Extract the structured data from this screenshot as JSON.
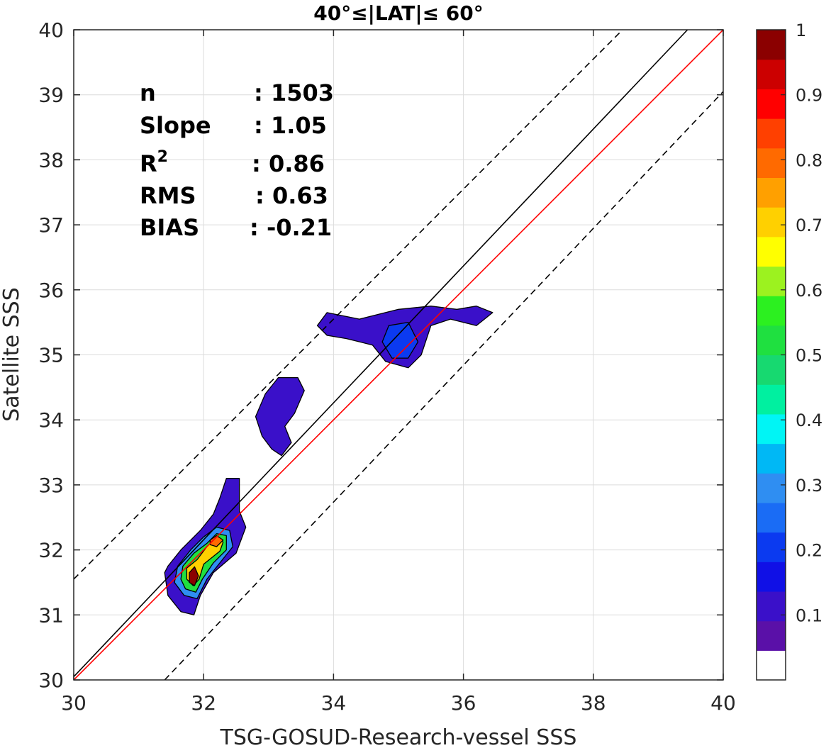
{
  "chart_data": {
    "type": "contour",
    "title": "40°≤|LAT|≤ 60°",
    "xlabel": "TSG-GOSUD-Research-vessel SSS",
    "ylabel": "Satellite SSS",
    "xlim": [
      30,
      40
    ],
    "ylim": [
      30,
      40
    ],
    "xticks": [
      "30",
      "32",
      "34",
      "36",
      "38",
      "40"
    ],
    "yticks": [
      "30",
      "31",
      "32",
      "33",
      "34",
      "35",
      "36",
      "37",
      "38",
      "39",
      "40"
    ],
    "grid": true,
    "stats": [
      {
        "label": "n",
        "value": ": 1503"
      },
      {
        "label": "Slope",
        "value": ": 1.05"
      },
      {
        "label": "R",
        "sup": "2",
        "value": ": 0.86"
      },
      {
        "label": "RMS",
        "value": ": 0.63"
      },
      {
        "label": "BIAS",
        "value": ": -0.21"
      }
    ],
    "lines": [
      {
        "name": "one-to-one",
        "color": "#ff0000",
        "style": "solid",
        "from": [
          30,
          30
        ],
        "to": [
          40,
          40
        ]
      },
      {
        "name": "regression",
        "color": "#000000",
        "style": "solid",
        "from": [
          30,
          30.05
        ],
        "to": [
          39.45,
          40
        ]
      },
      {
        "name": "upper-bound",
        "color": "#000000",
        "style": "dashed",
        "from": [
          30,
          31.55
        ],
        "to": [
          38.45,
          40
        ]
      },
      {
        "name": "lower-bound",
        "color": "#000000",
        "style": "dashed",
        "from": [
          31.4,
          30
        ],
        "to": [
          40,
          39.05
        ]
      }
    ],
    "contours": [
      {
        "level": 0.1,
        "color": "#3a10c9",
        "points": [
          [
            31.45,
            31.75
          ],
          [
            31.65,
            32.0
          ],
          [
            31.95,
            32.3
          ],
          [
            32.15,
            32.55
          ],
          [
            32.25,
            32.8
          ],
          [
            32.35,
            33.1
          ],
          [
            32.55,
            33.1
          ],
          [
            32.55,
            32.6
          ],
          [
            32.65,
            32.35
          ],
          [
            32.5,
            31.95
          ],
          [
            32.15,
            31.65
          ],
          [
            31.95,
            31.3
          ],
          [
            31.85,
            31.0
          ],
          [
            31.65,
            31.05
          ],
          [
            31.45,
            31.3
          ],
          [
            31.4,
            31.65
          ]
        ]
      },
      {
        "level": 0.1,
        "color": "#3a10c9",
        "points": [
          [
            32.8,
            34.05
          ],
          [
            32.95,
            34.4
          ],
          [
            33.15,
            34.65
          ],
          [
            33.45,
            34.65
          ],
          [
            33.55,
            34.45
          ],
          [
            33.4,
            34.1
          ],
          [
            33.25,
            33.9
          ],
          [
            33.35,
            33.65
          ],
          [
            33.2,
            33.45
          ],
          [
            33.05,
            33.55
          ],
          [
            32.9,
            33.75
          ]
        ]
      },
      {
        "level": 0.1,
        "color": "#3a10c9",
        "points": [
          [
            33.75,
            35.45
          ],
          [
            33.9,
            35.65
          ],
          [
            34.4,
            35.55
          ],
          [
            35.0,
            35.7
          ],
          [
            35.5,
            35.75
          ],
          [
            35.9,
            35.7
          ],
          [
            36.2,
            35.75
          ],
          [
            36.45,
            35.65
          ],
          [
            36.2,
            35.45
          ],
          [
            35.8,
            35.55
          ],
          [
            35.5,
            35.45
          ],
          [
            35.35,
            35.0
          ],
          [
            35.15,
            34.8
          ],
          [
            34.8,
            34.9
          ],
          [
            34.6,
            35.15
          ],
          [
            34.2,
            35.25
          ],
          [
            33.9,
            35.3
          ]
        ]
      },
      {
        "level": 0.2,
        "color": "#0b3af0",
        "points": [
          [
            34.75,
            35.2
          ],
          [
            34.85,
            35.45
          ],
          [
            35.15,
            35.5
          ],
          [
            35.3,
            35.2
          ],
          [
            35.15,
            34.95
          ],
          [
            34.9,
            34.95
          ]
        ]
      },
      {
        "level": 0.3,
        "color": "#2f8ef2",
        "points": [
          [
            31.6,
            31.75
          ],
          [
            31.8,
            32.0
          ],
          [
            32.0,
            32.2
          ],
          [
            32.2,
            32.35
          ],
          [
            32.4,
            32.3
          ],
          [
            32.45,
            32.05
          ],
          [
            32.25,
            31.8
          ],
          [
            32.05,
            31.55
          ],
          [
            31.9,
            31.25
          ],
          [
            31.7,
            31.3
          ],
          [
            31.55,
            31.5
          ]
        ]
      },
      {
        "level": 0.5,
        "color": "#1fe040",
        "points": [
          [
            31.68,
            31.75
          ],
          [
            31.85,
            31.95
          ],
          [
            32.05,
            32.1
          ],
          [
            32.2,
            32.25
          ],
          [
            32.35,
            32.22
          ],
          [
            32.35,
            32.0
          ],
          [
            32.15,
            31.8
          ],
          [
            31.98,
            31.55
          ],
          [
            31.88,
            31.35
          ],
          [
            31.72,
            31.4
          ],
          [
            31.65,
            31.55
          ]
        ]
      },
      {
        "level": 0.7,
        "color": "#ffd000",
        "points": [
          [
            31.74,
            31.72
          ],
          [
            31.9,
            31.85
          ],
          [
            32.05,
            32.05
          ],
          [
            32.2,
            32.2
          ],
          [
            32.3,
            32.12
          ],
          [
            32.25,
            31.98
          ],
          [
            32.0,
            31.78
          ],
          [
            31.93,
            31.55
          ],
          [
            31.84,
            31.45
          ],
          [
            31.74,
            31.55
          ]
        ]
      },
      {
        "level": 0.8,
        "color": "#ff6a00",
        "points": [
          [
            32.1,
            32.15
          ],
          [
            32.2,
            32.22
          ],
          [
            32.3,
            32.15
          ],
          [
            32.2,
            32.05
          ],
          [
            32.1,
            32.08
          ]
        ]
      },
      {
        "level": 1.0,
        "color": "#8b0000",
        "points": [
          [
            31.78,
            31.65
          ],
          [
            31.86,
            31.74
          ],
          [
            31.92,
            31.6
          ],
          [
            31.86,
            31.45
          ],
          [
            31.78,
            31.5
          ]
        ]
      }
    ],
    "colorbar": {
      "range": [
        0,
        1
      ],
      "ticks": [
        "0.1",
        "0.2",
        "0.3",
        "0.4",
        "0.5",
        "0.6",
        "0.7",
        "0.8",
        "0.9",
        "1"
      ],
      "colors": [
        "#ffffff",
        "#5a10a8",
        "#3a10c9",
        "#1010e6",
        "#0b3af0",
        "#1a6cf5",
        "#2f8ef2",
        "#00b8f5",
        "#00f5f5",
        "#00f0a0",
        "#17d970",
        "#1fe040",
        "#2cf020",
        "#9cf21f",
        "#ffff00",
        "#ffd000",
        "#ffa000",
        "#ff6a00",
        "#ff4000",
        "#ff0000",
        "#cc0000",
        "#8b0000"
      ]
    }
  }
}
